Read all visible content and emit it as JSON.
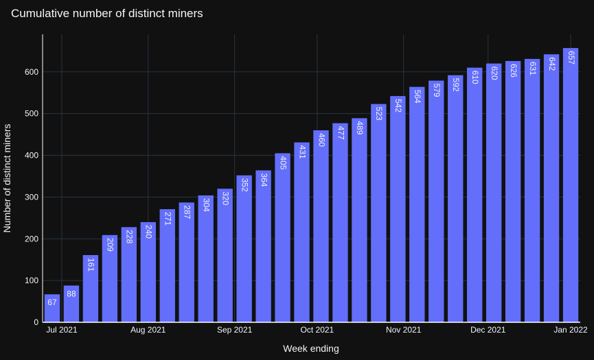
{
  "colors": {
    "background": "#111111",
    "bar": "#636efa",
    "text": "#f2f5fa",
    "grid": "#283442",
    "axis_line": "#ffffff"
  },
  "chart_data": {
    "type": "bar",
    "title": "Cumulative number of distinct miners",
    "xlabel": "Week ending",
    "ylabel": "Number of distinct miners",
    "ylim": [
      0,
      690
    ],
    "yticks": [
      0,
      100,
      200,
      300,
      400,
      500,
      600
    ],
    "xticks": [
      "Jul 2021",
      "Aug 2021",
      "Sep 2021",
      "Oct 2021",
      "Nov 2021",
      "Dec 2021",
      "Jan 2022"
    ],
    "xtick_positions": [
      0.5,
      5,
      9.5,
      13.8,
      18.3,
      22.7,
      27
    ],
    "values": [
      67,
      88,
      161,
      209,
      228,
      240,
      271,
      287,
      304,
      320,
      352,
      364,
      405,
      431,
      460,
      477,
      489,
      523,
      542,
      564,
      579,
      592,
      610,
      620,
      626,
      631,
      642,
      657
    ],
    "data_labels": [
      "67",
      "88",
      "161",
      "209",
      "228",
      "240",
      "271",
      "287",
      "304",
      "320",
      "352",
      "364",
      "405",
      "431",
      "460",
      "477",
      "489",
      "523",
      "542",
      "564",
      "579",
      "592",
      "610",
      "620",
      "626",
      "631",
      "642",
      "657"
    ],
    "grid": true,
    "legend": "none"
  }
}
